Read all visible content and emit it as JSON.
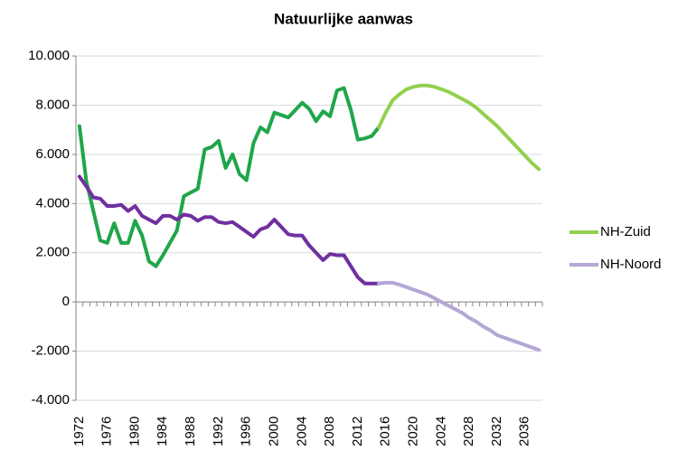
{
  "chart_data": {
    "type": "line",
    "title": "Natuurlijke aanwas",
    "categories": [
      "1972",
      null,
      null,
      null,
      "1976",
      null,
      null,
      null,
      "1980",
      null,
      null,
      null,
      "1984",
      null,
      null,
      null,
      "1988",
      null,
      null,
      null,
      "1992",
      null,
      null,
      null,
      "1996",
      null,
      null,
      null,
      "2000",
      null,
      null,
      null,
      "2004",
      null,
      null,
      null,
      "2008",
      null,
      null,
      null,
      "2012",
      null,
      null,
      null,
      "2016",
      null,
      null,
      null,
      "2020",
      null,
      null,
      null,
      "2024",
      null,
      null,
      null,
      "2028",
      null,
      null,
      null,
      "2032",
      null,
      null,
      null,
      "2036",
      null,
      null
    ],
    "series": [
      {
        "name": "NH-Zuid",
        "color": "#92d050",
        "values": [
          null,
          null,
          null,
          null,
          null,
          null,
          null,
          null,
          null,
          null,
          null,
          null,
          null,
          null,
          null,
          null,
          null,
          null,
          null,
          null,
          null,
          null,
          null,
          null,
          null,
          null,
          null,
          null,
          null,
          null,
          null,
          null,
          null,
          null,
          null,
          null,
          null,
          null,
          null,
          null,
          null,
          null,
          null,
          7100,
          7700,
          8200,
          8450,
          8650,
          8750,
          8800,
          8800,
          8750,
          8650,
          8550,
          8400,
          8250,
          8100,
          7900,
          7650,
          7400,
          7150,
          6850,
          6550,
          6250,
          5950,
          5650,
          5400
        ]
      },
      {
        "name": "NH-Noord",
        "color": "#b4a7d6",
        "values": [
          null,
          null,
          null,
          null,
          null,
          null,
          null,
          null,
          null,
          null,
          null,
          null,
          null,
          null,
          null,
          null,
          null,
          null,
          null,
          null,
          null,
          null,
          null,
          null,
          null,
          null,
          null,
          null,
          null,
          null,
          null,
          null,
          null,
          null,
          null,
          null,
          null,
          null,
          null,
          null,
          null,
          null,
          null,
          750,
          780,
          780,
          700,
          600,
          500,
          400,
          300,
          150,
          0,
          -150,
          -300,
          -450,
          -650,
          -800,
          -1000,
          -1150,
          -1350,
          -1450,
          -1550,
          -1650,
          -1750,
          -1850,
          -1950
        ]
      }
    ],
    "history": [
      {
        "color": "#1fa64a",
        "values": [
          7150,
          4900,
          3700,
          2500,
          2400,
          3200,
          2400,
          2400,
          3300,
          2700,
          1650,
          1450,
          1900,
          2400,
          2900,
          4300,
          4450,
          4600,
          6200,
          6300,
          6550,
          5450,
          6000,
          5200,
          4950,
          6450,
          7100,
          6900,
          7700,
          7600,
          7500,
          7800,
          8100,
          7850,
          7350,
          7750,
          7550,
          8600,
          8700,
          7800,
          6600,
          6650,
          6750,
          7100,
          null,
          null,
          null,
          null,
          null,
          null,
          null,
          null,
          null,
          null,
          null,
          null,
          null,
          null,
          null,
          null,
          null,
          null,
          null,
          null,
          null,
          null,
          null
        ]
      },
      {
        "color": "#7030a0",
        "values": [
          5100,
          4700,
          4250,
          4200,
          3900,
          3900,
          3950,
          3700,
          3900,
          3500,
          3350,
          3200,
          3500,
          3500,
          3350,
          3550,
          3500,
          3300,
          3450,
          3450,
          3250,
          3200,
          3250,
          3050,
          2850,
          2650,
          2950,
          3050,
          3350,
          3050,
          2750,
          2700,
          2700,
          2300,
          2000,
          1700,
          1950,
          1900,
          1900,
          1450,
          1000,
          750,
          750,
          750,
          null,
          null,
          null,
          null,
          null,
          null,
          null,
          null,
          null,
          null,
          null,
          null,
          null,
          null,
          null,
          null,
          null,
          null,
          null,
          null,
          null,
          null,
          null
        ]
      }
    ],
    "ylim": [
      -4000,
      10000
    ],
    "yticks": [
      {
        "value": -4000,
        "label": "-4.000"
      },
      {
        "value": -2000,
        "label": "-2.000"
      },
      0,
      {
        "value": 2000,
        "label": "2.000"
      },
      {
        "value": 4000,
        "label": "4.000"
      },
      {
        "value": 6000,
        "label": "6.000"
      },
      {
        "value": 8000,
        "label": "8.000"
      },
      {
        "value": 10000,
        "label": "10.000"
      }
    ],
    "grid": true,
    "legend": "right"
  }
}
